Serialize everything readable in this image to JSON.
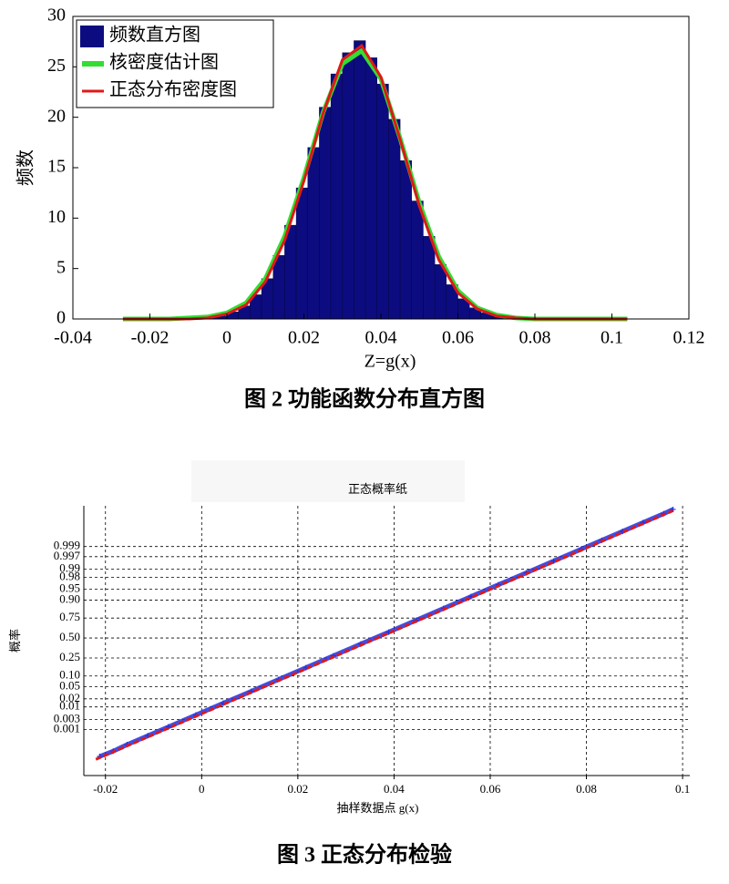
{
  "chart_data": [
    {
      "type": "histogram",
      "caption": "图 2  功能函数分布直方图",
      "xlabel": "Z=g(x)",
      "ylabel": "频数",
      "name": "频数直方图",
      "color": "#0c0c80",
      "bins": [
        -0.027,
        -0.024,
        -0.021,
        -0.018,
        -0.015,
        -0.012,
        -0.009,
        -0.006,
        -0.003,
        0,
        0.003,
        0.006,
        0.009,
        0.012,
        0.015,
        0.018,
        0.021,
        0.024,
        0.027,
        0.03,
        0.033,
        0.036,
        0.039,
        0.042,
        0.045,
        0.048,
        0.051,
        0.054,
        0.057,
        0.06,
        0.063,
        0.066,
        0.069,
        0.072,
        0.075,
        0.078,
        0.081,
        0.084,
        0.087,
        0.09,
        0.093,
        0.096,
        0.099,
        0.102,
        0.105
      ],
      "values": [
        0,
        0,
        0,
        0,
        0,
        0,
        0.1,
        0.2,
        0.3,
        0.7,
        1.3,
        2.4,
        4.0,
        6.3,
        9.3,
        13.0,
        17.0,
        21.0,
        24.3,
        26.4,
        27.6,
        25.9,
        23.3,
        19.8,
        15.7,
        11.7,
        8.2,
        5.4,
        3.4,
        2.0,
        1.1,
        0.6,
        0.3,
        0.1,
        0,
        0,
        0,
        0,
        0,
        0,
        0,
        0,
        0,
        0
      ],
      "lines": [
        {
          "name": "核密度估计图",
          "color": "#33dd33",
          "x": [
            -0.027,
            -0.02,
            -0.015,
            -0.01,
            -0.005,
            0,
            0.005,
            0.01,
            0.015,
            0.02,
            0.025,
            0.03,
            0.035,
            0.04,
            0.045,
            0.05,
            0.055,
            0.06,
            0.065,
            0.07,
            0.075,
            0.08,
            0.085,
            0.09,
            0.095,
            0.1,
            0.104
          ],
          "values": [
            0,
            0,
            0,
            0.1,
            0.2,
            0.6,
            1.6,
            4.0,
            8.2,
            14.0,
            20.5,
            25.3,
            26.6,
            23.8,
            17.9,
            11.5,
            6.2,
            2.8,
            1.1,
            0.4,
            0.1,
            0,
            0,
            0,
            0,
            0,
            0
          ]
        },
        {
          "name": "正态分布密度图",
          "color": "#e01818",
          "x": [
            -0.027,
            -0.02,
            -0.015,
            -0.01,
            -0.005,
            0,
            0.005,
            0.01,
            0.015,
            0.02,
            0.025,
            0.03,
            0.035,
            0.04,
            0.045,
            0.05,
            0.055,
            0.06,
            0.065,
            0.07,
            0.075,
            0.08,
            0.085,
            0.09,
            0.095,
            0.1,
            0.104
          ],
          "values": [
            0,
            0,
            0,
            0,
            0.1,
            0.5,
            1.4,
            3.7,
            7.8,
            13.7,
            20.4,
            25.7,
            27.1,
            24.0,
            17.8,
            11.2,
            5.9,
            2.6,
            1.0,
            0.3,
            0.1,
            0,
            0,
            0,
            0,
            0,
            0
          ]
        }
      ],
      "legend": "upper left",
      "xlim": [
        -0.04,
        0.12
      ],
      "xticks": [
        -0.04,
        -0.02,
        0,
        0.02,
        0.04,
        0.06,
        0.08,
        0.1,
        0.12
      ],
      "ylim": [
        0,
        30
      ],
      "yticks": [
        0,
        5,
        10,
        15,
        20,
        25,
        30
      ]
    },
    {
      "type": "probability",
      "title": "正态概率纸",
      "caption": "图 3  正态分布检验",
      "xlabel": "抽样数据点 g(x)",
      "ylabel": "概率",
      "yscale": "probit",
      "grid": true,
      "series": [
        {
          "color": "#2030e0",
          "x": [
            -0.0212,
            -0.0184,
            -0.0155,
            -0.0112,
            -0.0069,
            -0.0012,
            0.0045,
            0.0103,
            0.016,
            0.0217,
            0.0274,
            0.0331,
            0.0389,
            0.0446,
            0.0503,
            0.056,
            0.0617,
            0.0675,
            0.0732,
            0.0789,
            0.0832,
            0.0875,
            0.0918,
            0.0961,
            0.098
          ],
          "values": [
            3.17e-05,
            6.63e-05,
            0.000159,
            0.000483,
            0.00135,
            0.00466,
            0.0139,
            0.0359,
            0.0808,
            0.1587,
            0.2743,
            0.4207,
            0.5793,
            0.7257,
            0.8413,
            0.9192,
            0.9641,
            0.9861,
            0.99534,
            0.99865,
            0.999517,
            0.999841,
            0.999952,
            0.9999867,
            0.999993
          ]
        },
        {
          "color": "#e01818",
          "dashed": true,
          "x": [
            -0.022,
            0.098
          ],
          "values": [
            2.07e-05,
            0.9999915
          ]
        }
      ],
      "xlim": [
        -0.0245,
        0.1015
      ],
      "xticks": [
        -0.02,
        0,
        0.02,
        0.04,
        0.06,
        0.08,
        0.1
      ],
      "ylim": [
        1.7e-06,
        0.999996
      ],
      "yticks": [
        0.001,
        0.003,
        0.01,
        0.02,
        0.05,
        {
          "value": 0.1,
          "label": "0.10"
        },
        0.25,
        {
          "value": 0.5,
          "label": "0.50"
        },
        0.75,
        {
          "value": 0.9,
          "label": "0.90"
        },
        0.95,
        0.98,
        0.99,
        0.997,
        0.999
      ]
    }
  ]
}
